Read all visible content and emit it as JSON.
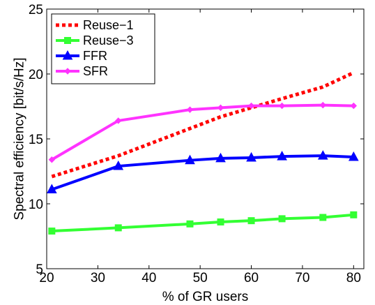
{
  "chart_data": {
    "type": "line",
    "title": "",
    "xlabel": "% of GR users",
    "ylabel": "Spectral efficiency [bit/s/Hz]",
    "xlim": [
      20,
      82
    ],
    "ylim": [
      5,
      25
    ],
    "xticks": [
      20,
      30,
      40,
      50,
      60,
      70,
      80
    ],
    "yticks": [
      5,
      10,
      15,
      20,
      25
    ],
    "grid": false,
    "legend_position": "top-left",
    "series": [
      {
        "name": "Reuse−1",
        "color": "#ff0000",
        "style": "dotted",
        "marker": "none",
        "x": [
          21,
          34,
          48,
          54,
          60,
          66,
          74,
          80
        ],
        "y": [
          12.1,
          13.7,
          15.8,
          16.7,
          17.4,
          18.1,
          19.0,
          20.1
        ]
      },
      {
        "name": "Reuse−3",
        "color": "#33ff33",
        "style": "solid",
        "marker": "square",
        "x": [
          21,
          34,
          48,
          54,
          60,
          66,
          74,
          80
        ],
        "y": [
          7.9,
          8.15,
          8.45,
          8.6,
          8.7,
          8.85,
          8.95,
          9.15
        ]
      },
      {
        "name": "FFR",
        "color": "#0000ff",
        "style": "solid",
        "marker": "triangle",
        "x": [
          21,
          34,
          48,
          54,
          60,
          66,
          74,
          80
        ],
        "y": [
          11.1,
          12.9,
          13.35,
          13.5,
          13.55,
          13.65,
          13.7,
          13.6
        ]
      },
      {
        "name": "SFR",
        "color": "#ff33ff",
        "style": "solid",
        "marker": "diamond",
        "x": [
          21,
          34,
          48,
          54,
          60,
          66,
          74,
          80
        ],
        "y": [
          13.4,
          16.4,
          17.25,
          17.4,
          17.55,
          17.55,
          17.6,
          17.55
        ]
      }
    ]
  }
}
